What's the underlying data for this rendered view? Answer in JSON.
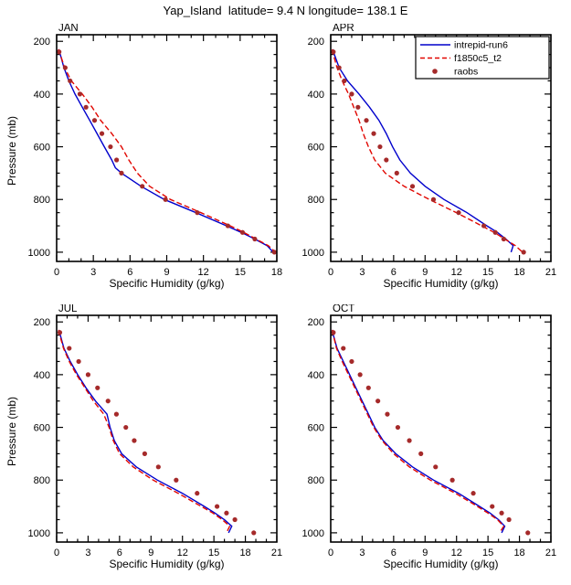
{
  "title": "Yap_Island  latitude= 9.4 N longitude= 138.1 E",
  "xlabel": "Specific Humidity (g/kg)",
  "ylabel": "Pressure (mb)",
  "colors": {
    "intrepid_run6": "#0000cc",
    "f1850c5_t2": "#e10600",
    "raobs": "#a52a2a",
    "axis": "#000000",
    "background": "#ffffff"
  },
  "legend": {
    "position": "inside-top-right-APR-panel",
    "entries": [
      {
        "label": "intrepid-run6",
        "color": "#0000cc",
        "style": "solid-line"
      },
      {
        "label": "f1850c5_t2",
        "color": "#e10600",
        "style": "dashed-line"
      },
      {
        "label": "raobs",
        "color": "#a52a2a",
        "style": "filled-circle"
      }
    ]
  },
  "axes": {
    "yticks": [
      200,
      400,
      600,
      800,
      1000
    ],
    "y_minor_step": 50,
    "x_major_step": 3,
    "x_minor_step": 1,
    "pressure_axis_range": [
      175,
      1035
    ],
    "y_axis_inverted": true,
    "grid": false
  },
  "chart_data": [
    {
      "type": "line",
      "panel": "JAN",
      "xlabel": "Specific Humidity (g/kg)",
      "ylabel": "Pressure (mb)",
      "xlim": [
        0,
        18
      ],
      "xticks": [
        0,
        3,
        6,
        9,
        12,
        15,
        18
      ],
      "yticks": [
        200,
        400,
        600,
        800,
        1000
      ],
      "ylim": [
        1035,
        175
      ],
      "show_legend": false,
      "series": [
        {
          "name": "intrepid-run6",
          "style": "solid",
          "color": "#0000cc",
          "points_pressure_humidity": [
            [
              230,
              0.15
            ],
            [
              250,
              0.3
            ],
            [
              300,
              0.6
            ],
            [
              350,
              1.0
            ],
            [
              400,
              1.5
            ],
            [
              450,
              2.1
            ],
            [
              500,
              2.7
            ],
            [
              550,
              3.3
            ],
            [
              600,
              3.9
            ],
            [
              650,
              4.5
            ],
            [
              680,
              4.8
            ],
            [
              700,
              5.3
            ],
            [
              750,
              6.9
            ],
            [
              800,
              8.8
            ],
            [
              850,
              11.4
            ],
            [
              900,
              13.9
            ],
            [
              925,
              15.1
            ],
            [
              950,
              16.2
            ],
            [
              975,
              17.2
            ],
            [
              1000,
              17.7
            ]
          ]
        },
        {
          "name": "f1850c5_t2",
          "style": "dashed",
          "color": "#e10600",
          "points_pressure_humidity": [
            [
              230,
              0.15
            ],
            [
              250,
              0.3
            ],
            [
              300,
              0.65
            ],
            [
              350,
              1.2
            ],
            [
              400,
              2.1
            ],
            [
              450,
              2.9
            ],
            [
              500,
              3.6
            ],
            [
              550,
              4.5
            ],
            [
              600,
              5.3
            ],
            [
              650,
              5.9
            ],
            [
              700,
              6.6
            ],
            [
              750,
              7.6
            ],
            [
              800,
              9.3
            ],
            [
              850,
              11.8
            ],
            [
              900,
              14.2
            ],
            [
              925,
              15.3
            ],
            [
              950,
              16.3
            ],
            [
              975,
              17.3
            ],
            [
              1000,
              17.9
            ]
          ]
        },
        {
          "name": "raobs",
          "style": "points",
          "color": "#a52a2a",
          "points_pressure_humidity": [
            [
              240,
              0.2
            ],
            [
              300,
              0.7
            ],
            [
              350,
              1.1
            ],
            [
              400,
              1.9
            ],
            [
              450,
              2.4
            ],
            [
              500,
              3.1
            ],
            [
              550,
              3.7
            ],
            [
              600,
              4.4
            ],
            [
              650,
              4.9
            ],
            [
              700,
              5.3
            ],
            [
              750,
              7.0
            ],
            [
              800,
              8.9
            ],
            [
              850,
              11.5
            ],
            [
              900,
              14.0
            ],
            [
              925,
              15.2
            ],
            [
              950,
              16.2
            ],
            [
              1000,
              17.8
            ]
          ]
        }
      ]
    },
    {
      "type": "line",
      "panel": "APR",
      "xlabel": "Specific Humidity (g/kg)",
      "ylabel": "Pressure (mb)",
      "xlim": [
        0,
        21
      ],
      "xticks": [
        0,
        3,
        6,
        9,
        12,
        15,
        18,
        21
      ],
      "yticks": [
        200,
        400,
        600,
        800,
        1000
      ],
      "ylim": [
        1035,
        175
      ],
      "show_legend": true,
      "series": [
        {
          "name": "intrepid-run6",
          "style": "solid",
          "color": "#0000cc",
          "points_pressure_humidity": [
            [
              230,
              0.2
            ],
            [
              250,
              0.35
            ],
            [
              300,
              0.8
            ],
            [
              350,
              1.6
            ],
            [
              400,
              2.7
            ],
            [
              450,
              3.7
            ],
            [
              500,
              4.6
            ],
            [
              550,
              5.3
            ],
            [
              600,
              5.9
            ],
            [
              650,
              6.6
            ],
            [
              700,
              7.6
            ],
            [
              750,
              9.0
            ],
            [
              800,
              10.8
            ],
            [
              850,
              13.0
            ],
            [
              900,
              14.9
            ],
            [
              925,
              15.9
            ],
            [
              950,
              16.7
            ],
            [
              975,
              17.4
            ],
            [
              1000,
              17.2
            ]
          ]
        },
        {
          "name": "f1850c5_t2",
          "style": "dashed",
          "color": "#e10600",
          "points_pressure_humidity": [
            [
              230,
              0.15
            ],
            [
              250,
              0.25
            ],
            [
              300,
              0.6
            ],
            [
              350,
              1.1
            ],
            [
              400,
              1.7
            ],
            [
              450,
              2.2
            ],
            [
              500,
              2.7
            ],
            [
              550,
              3.1
            ],
            [
              600,
              3.6
            ],
            [
              650,
              4.2
            ],
            [
              700,
              5.2
            ],
            [
              750,
              7.0
            ],
            [
              800,
              9.4
            ],
            [
              850,
              12.0
            ],
            [
              900,
              14.4
            ],
            [
              925,
              15.6
            ],
            [
              950,
              16.6
            ],
            [
              975,
              17.6
            ],
            [
              1000,
              18.3
            ]
          ]
        },
        {
          "name": "raobs",
          "style": "points",
          "color": "#a52a2a",
          "points_pressure_humidity": [
            [
              240,
              0.25
            ],
            [
              300,
              0.8
            ],
            [
              350,
              1.3
            ],
            [
              400,
              2.0
            ],
            [
              450,
              2.6
            ],
            [
              500,
              3.4
            ],
            [
              550,
              4.1
            ],
            [
              600,
              4.7
            ],
            [
              650,
              5.3
            ],
            [
              700,
              6.3
            ],
            [
              750,
              7.8
            ],
            [
              800,
              9.8
            ],
            [
              850,
              12.2
            ],
            [
              900,
              14.6
            ],
            [
              925,
              15.7
            ],
            [
              950,
              16.5
            ],
            [
              1000,
              18.4
            ]
          ]
        }
      ]
    },
    {
      "type": "line",
      "panel": "JUL",
      "xlabel": "Specific Humidity (g/kg)",
      "ylabel": "Pressure (mb)",
      "xlim": [
        0,
        21
      ],
      "xticks": [
        0,
        3,
        6,
        9,
        12,
        15,
        18,
        21
      ],
      "yticks": [
        200,
        400,
        600,
        800,
        1000
      ],
      "ylim": [
        1035,
        175
      ],
      "show_legend": false,
      "series": [
        {
          "name": "intrepid-run6",
          "style": "solid",
          "color": "#0000cc",
          "points_pressure_humidity": [
            [
              230,
              0.2
            ],
            [
              250,
              0.35
            ],
            [
              300,
              0.7
            ],
            [
              350,
              1.3
            ],
            [
              400,
              2.0
            ],
            [
              450,
              2.8
            ],
            [
              500,
              3.7
            ],
            [
              550,
              4.8
            ],
            [
              600,
              5.1
            ],
            [
              650,
              5.5
            ],
            [
              700,
              6.2
            ],
            [
              750,
              7.6
            ],
            [
              800,
              9.6
            ],
            [
              850,
              12.0
            ],
            [
              900,
              14.1
            ],
            [
              925,
              15.1
            ],
            [
              950,
              16.0
            ],
            [
              975,
              16.7
            ],
            [
              1000,
              16.4
            ]
          ]
        },
        {
          "name": "f1850c5_t2",
          "style": "dashed",
          "color": "#e10600",
          "points_pressure_humidity": [
            [
              230,
              0.2
            ],
            [
              250,
              0.3
            ],
            [
              300,
              0.65
            ],
            [
              350,
              1.2
            ],
            [
              400,
              1.9
            ],
            [
              450,
              2.7
            ],
            [
              500,
              3.5
            ],
            [
              550,
              4.5
            ],
            [
              600,
              5.0
            ],
            [
              650,
              5.4
            ],
            [
              700,
              6.0
            ],
            [
              750,
              7.3
            ],
            [
              800,
              9.2
            ],
            [
              850,
              11.6
            ],
            [
              900,
              13.8
            ],
            [
              925,
              14.9
            ],
            [
              950,
              15.8
            ],
            [
              975,
              16.5
            ],
            [
              1000,
              16.2
            ]
          ]
        },
        {
          "name": "raobs",
          "style": "points",
          "color": "#a52a2a",
          "points_pressure_humidity": [
            [
              240,
              0.3
            ],
            [
              300,
              1.2
            ],
            [
              350,
              2.1
            ],
            [
              400,
              3.0
            ],
            [
              450,
              3.9
            ],
            [
              500,
              4.9
            ],
            [
              550,
              5.7
            ],
            [
              600,
              6.6
            ],
            [
              650,
              7.4
            ],
            [
              700,
              8.4
            ],
            [
              750,
              9.7
            ],
            [
              800,
              11.4
            ],
            [
              850,
              13.4
            ],
            [
              900,
              15.3
            ],
            [
              925,
              16.2
            ],
            [
              950,
              17.0
            ],
            [
              1000,
              18.8
            ]
          ]
        }
      ]
    },
    {
      "type": "line",
      "panel": "OCT",
      "xlabel": "Specific Humidity (g/kg)",
      "ylabel": "Pressure (mb)",
      "xlim": [
        0,
        21
      ],
      "xticks": [
        0,
        3,
        6,
        9,
        12,
        15,
        18,
        21
      ],
      "yticks": [
        200,
        400,
        600,
        800,
        1000
      ],
      "ylim": [
        1035,
        175
      ],
      "show_legend": false,
      "series": [
        {
          "name": "intrepid-run6",
          "style": "solid",
          "color": "#0000cc",
          "points_pressure_humidity": [
            [
              230,
              0.15
            ],
            [
              250,
              0.25
            ],
            [
              300,
              0.6
            ],
            [
              350,
              1.2
            ],
            [
              400,
              1.8
            ],
            [
              450,
              2.4
            ],
            [
              500,
              3.0
            ],
            [
              550,
              3.6
            ],
            [
              600,
              4.2
            ],
            [
              650,
              5.0
            ],
            [
              700,
              6.2
            ],
            [
              750,
              7.8
            ],
            [
              800,
              9.8
            ],
            [
              850,
              12.2
            ],
            [
              900,
              14.2
            ],
            [
              925,
              15.2
            ],
            [
              950,
              16.0
            ],
            [
              975,
              16.6
            ],
            [
              1000,
              16.3
            ]
          ]
        },
        {
          "name": "f1850c5_t2",
          "style": "dashed",
          "color": "#e10600",
          "points_pressure_humidity": [
            [
              230,
              0.15
            ],
            [
              250,
              0.25
            ],
            [
              300,
              0.55
            ],
            [
              350,
              1.1
            ],
            [
              400,
              1.7
            ],
            [
              450,
              2.3
            ],
            [
              500,
              2.9
            ],
            [
              550,
              3.5
            ],
            [
              600,
              4.1
            ],
            [
              650,
              4.9
            ],
            [
              700,
              6.0
            ],
            [
              750,
              7.5
            ],
            [
              800,
              9.5
            ],
            [
              850,
              11.9
            ],
            [
              900,
              14.0
            ],
            [
              925,
              15.0
            ],
            [
              950,
              15.9
            ],
            [
              975,
              16.5
            ],
            [
              1000,
              16.1
            ]
          ]
        },
        {
          "name": "raobs",
          "style": "points",
          "color": "#a52a2a",
          "points_pressure_humidity": [
            [
              240,
              0.25
            ],
            [
              300,
              1.2
            ],
            [
              350,
              2.0
            ],
            [
              400,
              2.8
            ],
            [
              450,
              3.6
            ],
            [
              500,
              4.5
            ],
            [
              550,
              5.4
            ],
            [
              600,
              6.4
            ],
            [
              650,
              7.5
            ],
            [
              700,
              8.6
            ],
            [
              750,
              10.0
            ],
            [
              800,
              11.6
            ],
            [
              850,
              13.6
            ],
            [
              900,
              15.4
            ],
            [
              925,
              16.3
            ],
            [
              950,
              17.0
            ],
            [
              1000,
              18.8
            ]
          ]
        }
      ]
    }
  ]
}
